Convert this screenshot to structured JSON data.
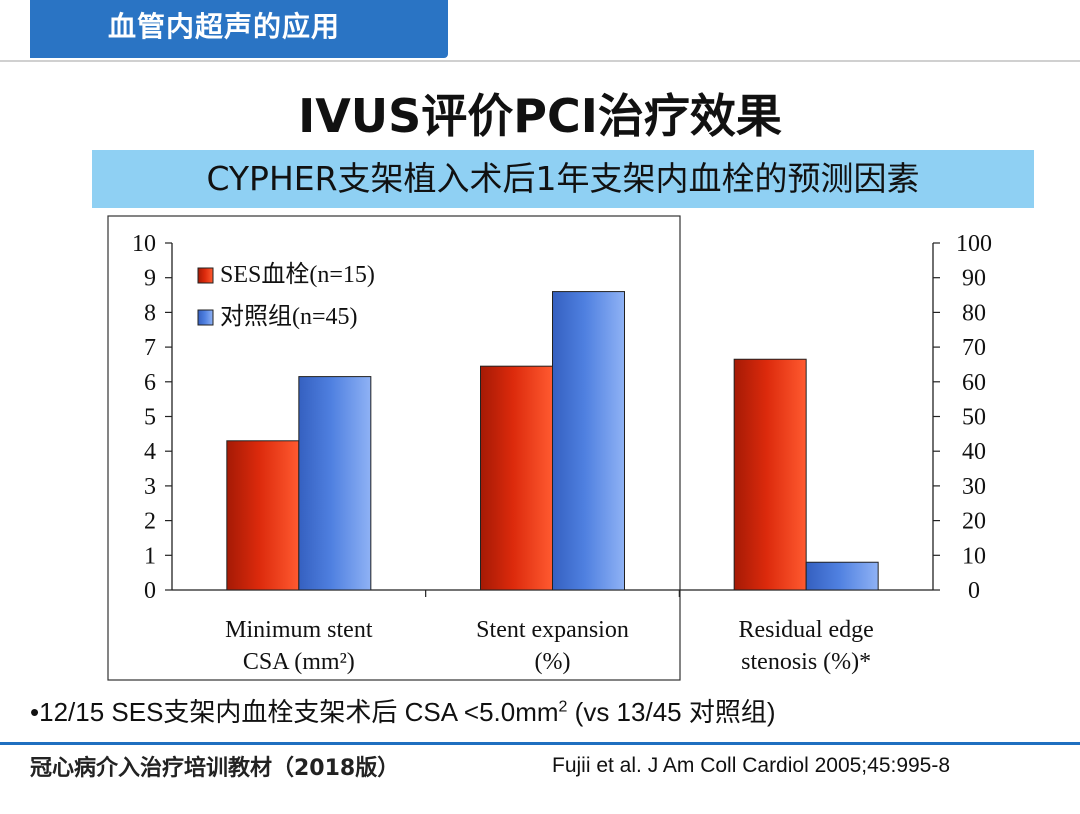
{
  "header": {
    "section_title": "血管内超声的应用"
  },
  "main_title": "IVUS评价PCI治疗效果",
  "subtitle": "CYPHER支架植入术后1年支架内血栓的预测因素",
  "chart_data": {
    "type": "bar",
    "categories": [
      [
        "Minimum stent",
        "CSA (mm²)"
      ],
      [
        "Stent expansion",
        "(%)"
      ],
      [
        "Residual edge",
        "stenosis (%)*"
      ]
    ],
    "series": [
      {
        "name": "SES血栓(n=15)",
        "color": "#dc2a0c",
        "values": [
          4.3,
          64.5,
          66.5
        ]
      },
      {
        "name": "对照组(n=45)",
        "color": "#4f80e0",
        "values": [
          6.15,
          86,
          8
        ]
      }
    ],
    "axis_assignment": [
      "left",
      "right",
      "right"
    ],
    "y_left": {
      "ticks": [
        "0",
        "1",
        "2",
        "3",
        "4",
        "5",
        "6",
        "7",
        "8",
        "9",
        "10"
      ],
      "ylim": [
        0,
        10
      ]
    },
    "y_right": {
      "ticks": [
        "0",
        "10",
        "20",
        "30",
        "40",
        "50",
        "60",
        "70",
        "80",
        "90",
        "100"
      ],
      "ylim": [
        0,
        100
      ]
    },
    "legend_position": "top-left",
    "grid": false
  },
  "note": {
    "prefix": "•12/15 SES支架内血栓支架术后 CSA <5.0mm",
    "sup": "2",
    "suffix": " (vs 13/45 对照组)"
  },
  "footer": {
    "left": "冠心病介入治疗培训教材（2018版）",
    "right": "Fujii et al. J Am Coll Cardiol 2005;45:995-8"
  }
}
